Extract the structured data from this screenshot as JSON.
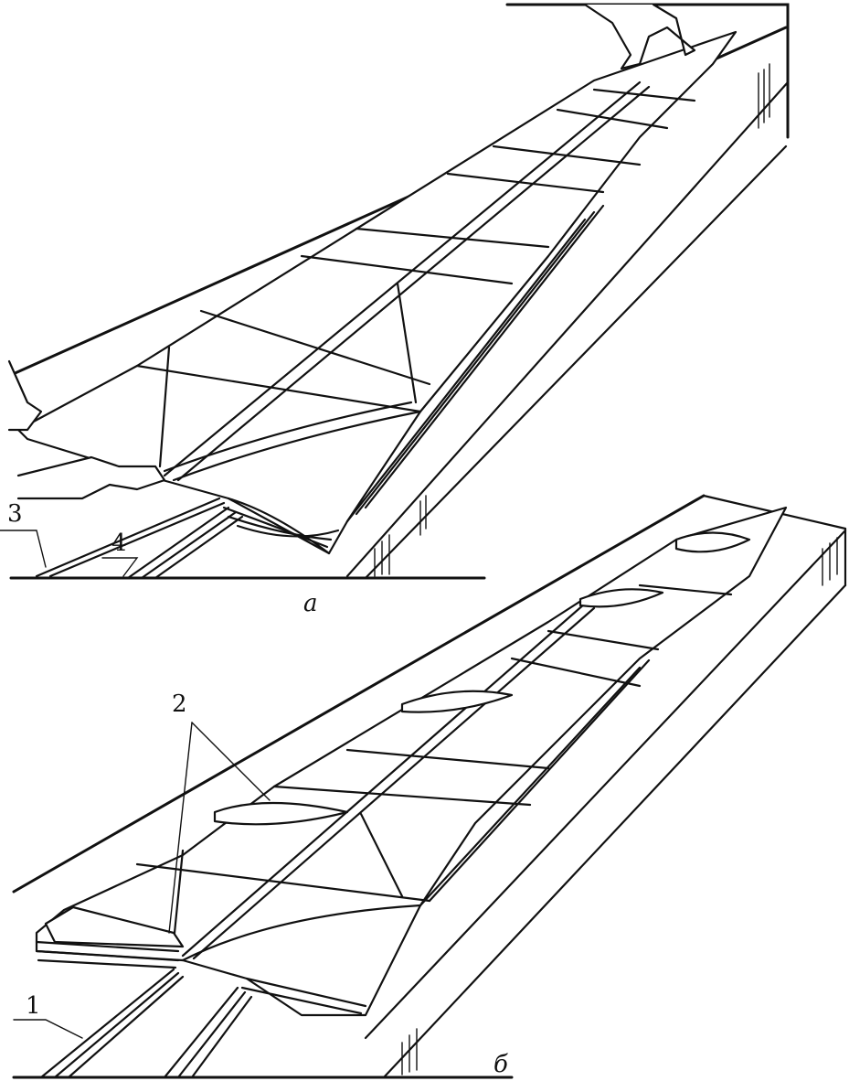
{
  "panels": [
    {
      "id": "a",
      "caption": "а"
    },
    {
      "id": "b",
      "caption": "б"
    }
  ],
  "callouts": [
    {
      "id": "callout-1",
      "text": "1"
    },
    {
      "id": "callout-2",
      "text": "2"
    },
    {
      "id": "callout-3",
      "text": "3"
    },
    {
      "id": "callout-4",
      "text": "4"
    }
  ]
}
